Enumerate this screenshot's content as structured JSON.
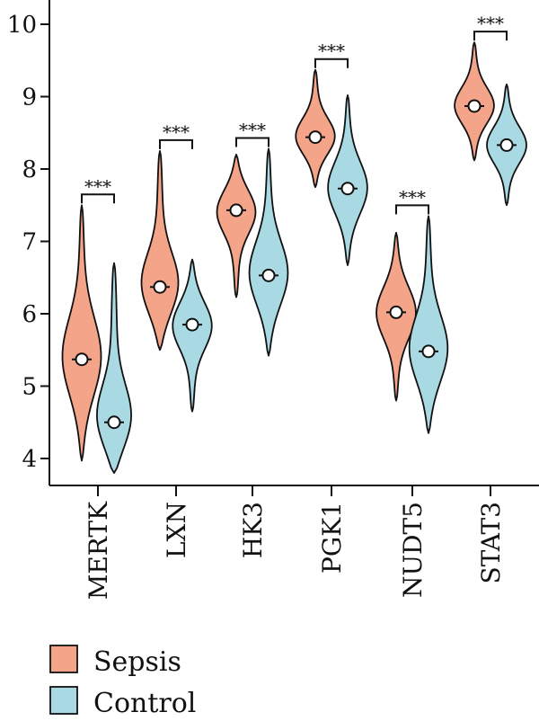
{
  "chart_data": {
    "type": "violin",
    "categories": [
      "MERTK",
      "LXN",
      "HK3",
      "PGK1",
      "NUDT5",
      "STAT3"
    ],
    "yticks": [
      4,
      5,
      6,
      7,
      8,
      9,
      10
    ],
    "ylim": [
      3.6,
      10.3
    ],
    "grid": false,
    "legend_position": "bottom-left",
    "series": [
      {
        "name": "Sepsis",
        "color": "#f4a488",
        "median": [
          5.37,
          6.37,
          7.43,
          8.44,
          6.02,
          8.87
        ],
        "min": [
          3.97,
          5.5,
          6.23,
          7.75,
          4.8,
          8.12
        ],
        "max": [
          7.5,
          8.25,
          8.2,
          9.37,
          7.12,
          9.75
        ]
      },
      {
        "name": "Control",
        "color": "#a9d9e3",
        "median": [
          4.5,
          5.85,
          6.53,
          7.73,
          5.48,
          8.33
        ],
        "min": [
          3.8,
          4.65,
          5.42,
          6.67,
          4.35,
          7.5
        ],
        "max": [
          6.7,
          6.75,
          8.28,
          9.02,
          7.35,
          9.17
        ]
      }
    ],
    "significance": [
      "***",
      "***",
      "***",
      "***",
      "***",
      "***"
    ]
  }
}
